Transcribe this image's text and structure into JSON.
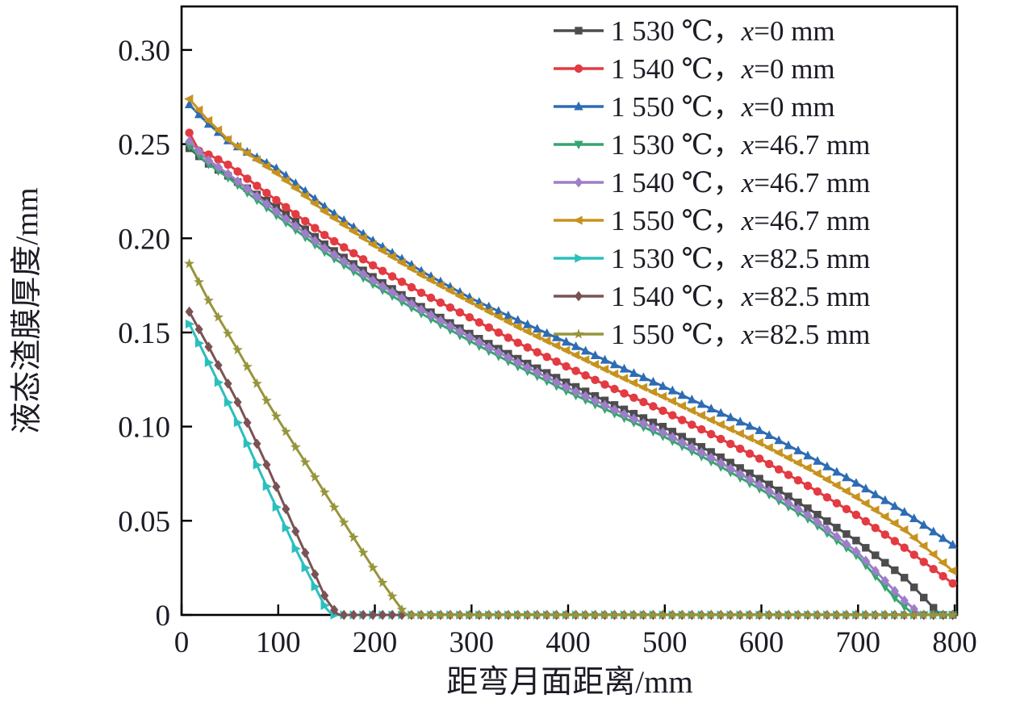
{
  "figure": {
    "background": "#ffffff",
    "text_color": "#1c1c26",
    "frame_color": "#000000"
  },
  "chart_data": {
    "type": "line",
    "title": "",
    "xlabel": "距弯月面距离/mm",
    "ylabel": "液态渣膜厚度/mm",
    "xlim": [
      0,
      802.5
    ],
    "ylim": [
      0,
      0.3231
    ],
    "xticks": [
      0,
      100,
      200,
      300,
      400,
      500,
      600,
      700,
      800
    ],
    "xtick_labels": [
      "0",
      "100",
      "200",
      "300",
      "400",
      "500",
      "600",
      "700",
      "800"
    ],
    "yticks": [
      0,
      0.05,
      0.1,
      0.15,
      0.2,
      0.25,
      0.3
    ],
    "ytick_labels": [
      "0",
      "0.05",
      "0.10",
      "0.15",
      "0.20",
      "0.25",
      "0.30"
    ],
    "grid": false,
    "legend_position": "top-right-inside",
    "marker_step_mm": 10,
    "series": [
      {
        "id": "1530C-x0",
        "label": "1 530 ℃，x=0 mm",
        "label_temp": "1 530 ℃，",
        "label_var": "x",
        "label_rest": "=0 mm",
        "color": "#4d4d4d",
        "marker": "square",
        "x": [
          8,
          25,
          50,
          100,
          150,
          200,
          250,
          300,
          350,
          400,
          450,
          500,
          550,
          600,
          650,
          700,
          750,
          785,
          800
        ],
        "y": [
          0.2478,
          0.2405,
          0.2325,
          0.216,
          0.196,
          0.1788,
          0.163,
          0.1488,
          0.1355,
          0.123,
          0.111,
          0.0995,
          0.086,
          0.0718,
          0.056,
          0.0388,
          0.019,
          0,
          0
        ]
      },
      {
        "id": "1540C-x0",
        "label": "1 540 ℃，x=0 mm",
        "label_temp": "1 540 ℃，",
        "label_var": "x",
        "label_rest": "=0 mm",
        "color": "#e23b42",
        "marker": "circle",
        "x": [
          8,
          18,
          30,
          50,
          100,
          150,
          200,
          250,
          300,
          350,
          400,
          450,
          500,
          550,
          600,
          650,
          700,
          750,
          800
        ],
        "y": [
          0.256,
          0.2465,
          0.244,
          0.2385,
          0.2195,
          0.201,
          0.185,
          0.1705,
          0.1575,
          0.144,
          0.1315,
          0.1195,
          0.108,
          0.0955,
          0.0825,
          0.068,
          0.0525,
          0.035,
          0.016
        ]
      },
      {
        "id": "1550C-x0",
        "label": "1 550 ℃，x=0 mm",
        "label_temp": "1 550 ℃，",
        "label_var": "x",
        "label_rest": "=0 mm",
        "color": "#2e6cb4",
        "marker": "triangle-up",
        "x": [
          8,
          25,
          50,
          100,
          150,
          200,
          250,
          300,
          350,
          400,
          450,
          500,
          550,
          600,
          650,
          700,
          750,
          800
        ],
        "y": [
          0.271,
          0.262,
          0.251,
          0.2365,
          0.216,
          0.198,
          0.182,
          0.168,
          0.156,
          0.1445,
          0.1325,
          0.121,
          0.109,
          0.0975,
          0.084,
          0.0695,
          0.054,
          0.0365
        ]
      },
      {
        "id": "1530C-x46.7",
        "label": "1 530 ℃，x=46.7 mm",
        "label_temp": "1 530 ℃，",
        "label_var": "x",
        "label_rest": "=46.7 mm",
        "color": "#37a570",
        "marker": "triangle-down",
        "x": [
          8,
          25,
          50,
          100,
          150,
          200,
          250,
          300,
          350,
          400,
          450,
          500,
          550,
          600,
          650,
          700,
          740,
          758,
          800
        ],
        "y": [
          0.249,
          0.2405,
          0.2315,
          0.2115,
          0.192,
          0.175,
          0.1595,
          0.145,
          0.1315,
          0.1185,
          0.1065,
          0.0945,
          0.081,
          0.0665,
          0.0505,
          0.031,
          0.008,
          0,
          0
        ]
      },
      {
        "id": "1540C-x46.7",
        "label": "1 540 ℃，x=46.7 mm",
        "label_temp": "1 540 ℃，",
        "label_var": "x",
        "label_rest": "=46.7 mm",
        "color": "#9e7ec9",
        "marker": "diamond",
        "x": [
          8,
          25,
          50,
          100,
          150,
          200,
          250,
          300,
          350,
          400,
          450,
          500,
          550,
          600,
          650,
          700,
          745,
          765,
          800
        ],
        "y": [
          0.2515,
          0.2425,
          0.2335,
          0.2135,
          0.194,
          0.177,
          0.1615,
          0.147,
          0.1335,
          0.1205,
          0.1085,
          0.0965,
          0.083,
          0.0685,
          0.0525,
          0.033,
          0.009,
          0,
          0
        ]
      },
      {
        "id": "1550C-x46.7",
        "label": "1 550 ℃，x=46.7 mm",
        "label_temp": "1 550 ℃，",
        "label_var": "x",
        "label_rest": "=46.7 mm",
        "color": "#c7931f",
        "marker": "triangle-left",
        "x": [
          8,
          25,
          50,
          100,
          150,
          200,
          250,
          300,
          350,
          400,
          450,
          500,
          550,
          600,
          650,
          700,
          750,
          800
        ],
        "y": [
          0.274,
          0.264,
          0.2515,
          0.234,
          0.2135,
          0.196,
          0.18,
          0.166,
          0.1525,
          0.14,
          0.1275,
          0.1155,
          0.103,
          0.091,
          0.0775,
          0.062,
          0.0445,
          0.0225
        ]
      },
      {
        "id": "1530C-x82.5",
        "label": "1 530 ℃，x=82.5 mm",
        "label_temp": "1 530 ℃，",
        "label_var": "x",
        "label_rest": "=82.5 mm",
        "color": "#2bbfbd",
        "marker": "triangle-right",
        "x": [
          8,
          30,
          60,
          90,
          120,
          150,
          157,
          800
        ],
        "y": [
          0.1545,
          0.132,
          0.1,
          0.066,
          0.033,
          0.003,
          0,
          0
        ]
      },
      {
        "id": "1540C-x82.5",
        "label": "1 540 ℃，x=82.5 mm",
        "label_temp": "1 540 ℃，",
        "label_var": "x",
        "label_rest": "=82.5 mm",
        "color": "#7b5254",
        "marker": "diamond",
        "x": [
          8,
          30,
          60,
          90,
          120,
          150,
          162,
          800
        ],
        "y": [
          0.161,
          0.1405,
          0.111,
          0.0775,
          0.042,
          0.008,
          0,
          0
        ]
      },
      {
        "id": "1550C-x82.5",
        "label": "1 550 ℃，x=82.5 mm",
        "label_temp": "1 550 ℃，",
        "label_var": "x",
        "label_rest": "=82.5 mm",
        "color": "#97953c",
        "marker": "star",
        "x": [
          8,
          30,
          60,
          90,
          120,
          150,
          180,
          210,
          232,
          800
        ],
        "y": [
          0.1865,
          0.165,
          0.139,
          0.112,
          0.0875,
          0.0635,
          0.0395,
          0.0155,
          0,
          0
        ]
      }
    ]
  }
}
